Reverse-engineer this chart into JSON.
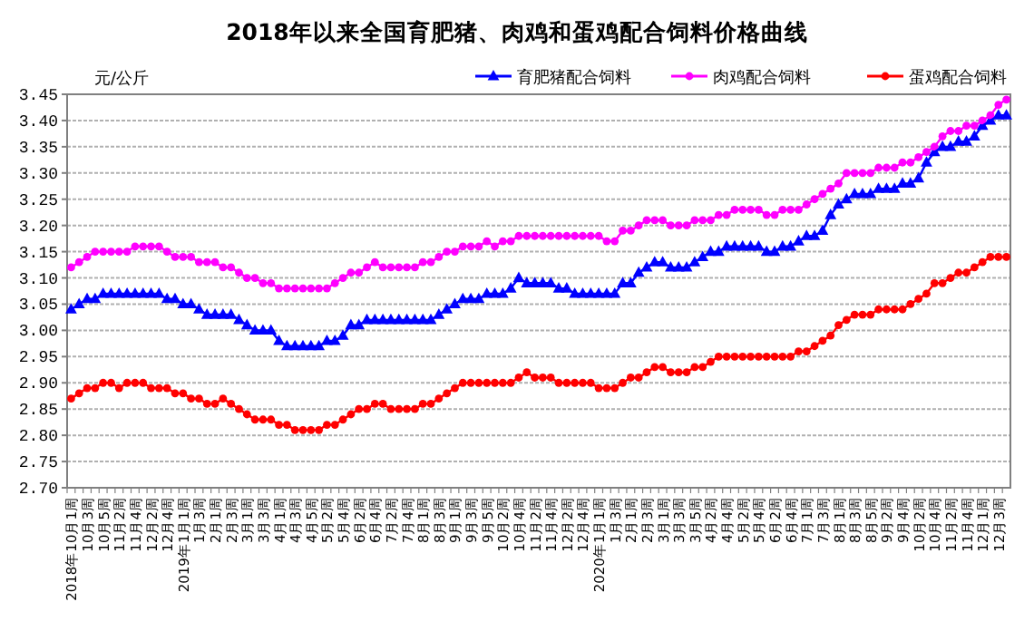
{
  "chart_data": {
    "type": "line",
    "title": "2018年以来全国育肥猪、肉鸡和蛋鸡配合饲料价格曲线",
    "ylabel": "元/公斤",
    "categories": [
      "2018年10月1周",
      null,
      "10月3周",
      null,
      "10月5周",
      null,
      "11月2周",
      null,
      "11月4周",
      null,
      "12月2周",
      null,
      "12月4周",
      null,
      "2019年1月1周",
      null,
      "1月3周",
      null,
      "2月1周",
      null,
      "2月3周",
      null,
      "3月1周",
      null,
      "3月3周",
      null,
      "4月1周",
      null,
      "4月3周",
      null,
      "4月5周",
      null,
      "5月2周",
      null,
      "5月4周",
      null,
      "6月2周",
      null,
      "6月4周",
      null,
      "7月2周",
      null,
      "7月4周",
      null,
      "8月1周",
      null,
      "8月3周",
      null,
      "9月1周",
      null,
      "9月3周",
      null,
      "9月5周",
      null,
      "10月2周",
      null,
      "10月4周",
      null,
      "11月2周",
      null,
      "11月4周",
      null,
      "12月2周",
      null,
      "12月4周",
      null,
      "2020年1月1周",
      null,
      "1月3周",
      null,
      "2月1周",
      null,
      "2月3周",
      null,
      "3月1周",
      null,
      "3月3周",
      null,
      "3月5周",
      null,
      "4月2周",
      null,
      "4月4周",
      null,
      "5月2周",
      null,
      "5月4周",
      null,
      "6月2周",
      null,
      "6月4周",
      null,
      "7月1周",
      null,
      "7月3周",
      null,
      "8月1周",
      null,
      "8月3周",
      null,
      "8月5周",
      null,
      "9月2周",
      null,
      "9月4周",
      null,
      "10月2周",
      null,
      "10月4周",
      null,
      "11月2周",
      null,
      "11月4周",
      null,
      "12月1周",
      null,
      "12月3周",
      null
    ],
    "series": [
      {
        "name": "育肥猪配合饲料",
        "color": "#0000ff",
        "marker": "triangle",
        "values": [
          3.04,
          3.05,
          3.06,
          3.06,
          3.07,
          3.07,
          3.07,
          3.07,
          3.07,
          3.07,
          3.07,
          3.07,
          3.06,
          3.06,
          3.05,
          3.05,
          3.04,
          3.03,
          3.03,
          3.03,
          3.03,
          3.02,
          3.01,
          3.0,
          3.0,
          3.0,
          2.98,
          2.97,
          2.97,
          2.97,
          2.97,
          2.97,
          2.98,
          2.98,
          2.99,
          3.01,
          3.01,
          3.02,
          3.02,
          3.02,
          3.02,
          3.02,
          3.02,
          3.02,
          3.02,
          3.02,
          3.03,
          3.04,
          3.05,
          3.06,
          3.06,
          3.06,
          3.07,
          3.07,
          3.07,
          3.08,
          3.1,
          3.09,
          3.09,
          3.09,
          3.09,
          3.08,
          3.08,
          3.07,
          3.07,
          3.07,
          3.07,
          3.07,
          3.07,
          3.09,
          3.09,
          3.11,
          3.12,
          3.13,
          3.13,
          3.12,
          3.12,
          3.12,
          3.13,
          3.14,
          3.15,
          3.15,
          3.16,
          3.16,
          3.16,
          3.16,
          3.16,
          3.15,
          3.15,
          3.16,
          3.16,
          3.17,
          3.18,
          3.18,
          3.19,
          3.22,
          3.24,
          3.25,
          3.26,
          3.26,
          3.26,
          3.27,
          3.27,
          3.27,
          3.28,
          3.28,
          3.29,
          3.32,
          3.34,
          3.35,
          3.35,
          3.36,
          3.36,
          3.37,
          3.39,
          3.4,
          3.41,
          3.41
        ]
      },
      {
        "name": "肉鸡配合饲料",
        "color": "#ff00ff",
        "marker": "circle",
        "values": [
          3.12,
          3.13,
          3.14,
          3.15,
          3.15,
          3.15,
          3.15,
          3.15,
          3.16,
          3.16,
          3.16,
          3.16,
          3.15,
          3.14,
          3.14,
          3.14,
          3.13,
          3.13,
          3.13,
          3.12,
          3.12,
          3.11,
          3.1,
          3.1,
          3.09,
          3.09,
          3.08,
          3.08,
          3.08,
          3.08,
          3.08,
          3.08,
          3.08,
          3.09,
          3.1,
          3.11,
          3.11,
          3.12,
          3.13,
          3.12,
          3.12,
          3.12,
          3.12,
          3.12,
          3.13,
          3.13,
          3.14,
          3.15,
          3.15,
          3.16,
          3.16,
          3.16,
          3.17,
          3.16,
          3.17,
          3.17,
          3.18,
          3.18,
          3.18,
          3.18,
          3.18,
          3.18,
          3.18,
          3.18,
          3.18,
          3.18,
          3.18,
          3.17,
          3.17,
          3.19,
          3.19,
          3.2,
          3.21,
          3.21,
          3.21,
          3.2,
          3.2,
          3.2,
          3.21,
          3.21,
          3.21,
          3.22,
          3.22,
          3.23,
          3.23,
          3.23,
          3.23,
          3.22,
          3.22,
          3.23,
          3.23,
          3.23,
          3.24,
          3.25,
          3.26,
          3.27,
          3.28,
          3.3,
          3.3,
          3.3,
          3.3,
          3.31,
          3.31,
          3.31,
          3.32,
          3.32,
          3.33,
          3.34,
          3.35,
          3.37,
          3.38,
          3.38,
          3.39,
          3.39,
          3.4,
          3.41,
          3.43,
          3.44
        ]
      },
      {
        "name": "蛋鸡配合饲料",
        "color": "#ff0000",
        "marker": "circle",
        "values": [
          2.87,
          2.88,
          2.89,
          2.89,
          2.9,
          2.9,
          2.89,
          2.9,
          2.9,
          2.9,
          2.89,
          2.89,
          2.89,
          2.88,
          2.88,
          2.87,
          2.87,
          2.86,
          2.86,
          2.87,
          2.86,
          2.85,
          2.84,
          2.83,
          2.83,
          2.83,
          2.82,
          2.82,
          2.81,
          2.81,
          2.81,
          2.81,
          2.82,
          2.82,
          2.83,
          2.84,
          2.85,
          2.85,
          2.86,
          2.86,
          2.85,
          2.85,
          2.85,
          2.85,
          2.86,
          2.86,
          2.87,
          2.88,
          2.89,
          2.9,
          2.9,
          2.9,
          2.9,
          2.9,
          2.9,
          2.9,
          2.91,
          2.92,
          2.91,
          2.91,
          2.91,
          2.9,
          2.9,
          2.9,
          2.9,
          2.9,
          2.89,
          2.89,
          2.89,
          2.9,
          2.91,
          2.91,
          2.92,
          2.93,
          2.93,
          2.92,
          2.92,
          2.92,
          2.93,
          2.93,
          2.94,
          2.95,
          2.95,
          2.95,
          2.95,
          2.95,
          2.95,
          2.95,
          2.95,
          2.95,
          2.95,
          2.96,
          2.96,
          2.97,
          2.98,
          2.99,
          3.01,
          3.02,
          3.03,
          3.03,
          3.03,
          3.04,
          3.04,
          3.04,
          3.04,
          3.05,
          3.06,
          3.07,
          3.09,
          3.09,
          3.1,
          3.11,
          3.11,
          3.12,
          3.13,
          3.14,
          3.14,
          3.14
        ]
      }
    ],
    "ylim": [
      2.7,
      3.45
    ],
    "yticks": [
      {
        "value": 2.7,
        "label": "2.70"
      },
      {
        "value": 2.75,
        "label": "2.75"
      },
      {
        "value": 2.8,
        "label": "2.80"
      },
      {
        "value": 2.85,
        "label": "2.85"
      },
      {
        "value": 2.9,
        "label": "2.90"
      },
      {
        "value": 2.95,
        "label": "2.95"
      },
      {
        "value": 3.0,
        "label": "3.00"
      },
      {
        "value": 3.05,
        "label": "3.05"
      },
      {
        "value": 3.1,
        "label": "3.10"
      },
      {
        "value": 3.15,
        "label": "3.15"
      },
      {
        "value": 3.2,
        "label": "3.20"
      },
      {
        "value": 3.25,
        "label": "3.25"
      },
      {
        "value": 3.3,
        "label": "3.30"
      },
      {
        "value": 3.35,
        "label": "3.35"
      },
      {
        "value": 3.4,
        "label": "3.40"
      },
      {
        "value": 3.45,
        "label": "3.45"
      }
    ],
    "grid": "y",
    "legend": "top",
    "line_style": "solid"
  }
}
